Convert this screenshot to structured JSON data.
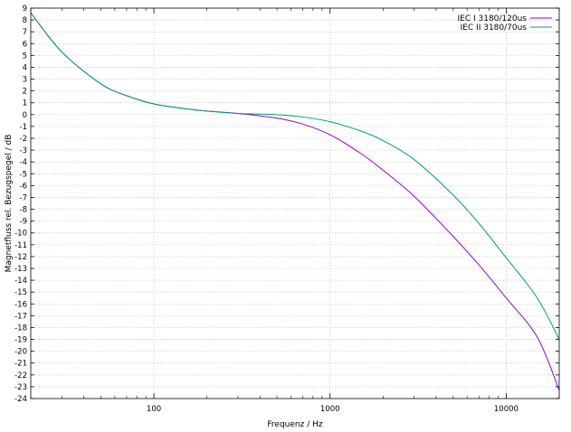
{
  "chart_data": {
    "type": "line",
    "xlabel": "Frequenz / Hz",
    "ylabel": "Magnetfluss rel. Bezugspegel  / dB",
    "x_scale": "log",
    "xlim": [
      20,
      20000
    ],
    "ylim": [
      -24,
      9
    ],
    "x_ticks": [
      100,
      1000,
      10000
    ],
    "x_tick_labels": [
      "100",
      "1000",
      "10000"
    ],
    "y_ticks": [
      9,
      8,
      7,
      6,
      5,
      4,
      3,
      2,
      1,
      0,
      -1,
      -2,
      -3,
      -4,
      -5,
      -6,
      -7,
      -8,
      -9,
      -10,
      -11,
      -12,
      -13,
      -14,
      -15,
      -16,
      -17,
      -18,
      -19,
      -20,
      -21,
      -22,
      -23,
      -24
    ],
    "y_tick_labels": [
      "9",
      "8",
      "7",
      "6",
      "5",
      "4",
      "3",
      "2",
      "1",
      "0",
      "-1",
      "-2",
      "-3",
      "-4",
      "-5",
      "-6",
      "-7",
      "-8",
      "-9",
      "-10",
      "-11",
      "-12",
      "-13",
      "-14",
      "-15",
      "-16",
      "-17",
      "-18",
      "-19",
      "-20",
      "-21",
      "-22",
      "-23",
      "-24"
    ],
    "grid": true,
    "legend_position": "top-right",
    "series": [
      {
        "name": "IEC I 3180/120us",
        "color": "#9400d3",
        "x": [
          20,
          30,
          50,
          70,
          100,
          150,
          200,
          300,
          500,
          700,
          1000,
          1500,
          2000,
          3000,
          5000,
          7000,
          10000,
          15000,
          20000
        ],
        "y": [
          8.6,
          5.3,
          2.6,
          1.6,
          0.9,
          0.5,
          0.3,
          0.1,
          -0.3,
          -0.8,
          -1.7,
          -3.3,
          -4.7,
          -6.9,
          -10.3,
          -12.7,
          -15.5,
          -18.8,
          -23.3
        ]
      },
      {
        "name": "IEC II 3180/70us",
        "color": "#009e73",
        "x": [
          20,
          30,
          50,
          70,
          100,
          150,
          200,
          300,
          500,
          700,
          1000,
          1500,
          2000,
          3000,
          5000,
          7000,
          10000,
          15000,
          20000
        ],
        "y": [
          8.6,
          5.3,
          2.6,
          1.6,
          0.9,
          0.5,
          0.3,
          0.1,
          0.0,
          -0.2,
          -0.6,
          -1.4,
          -2.2,
          -3.8,
          -6.8,
          -9.2,
          -12.1,
          -15.5,
          -19.0
        ]
      }
    ]
  }
}
